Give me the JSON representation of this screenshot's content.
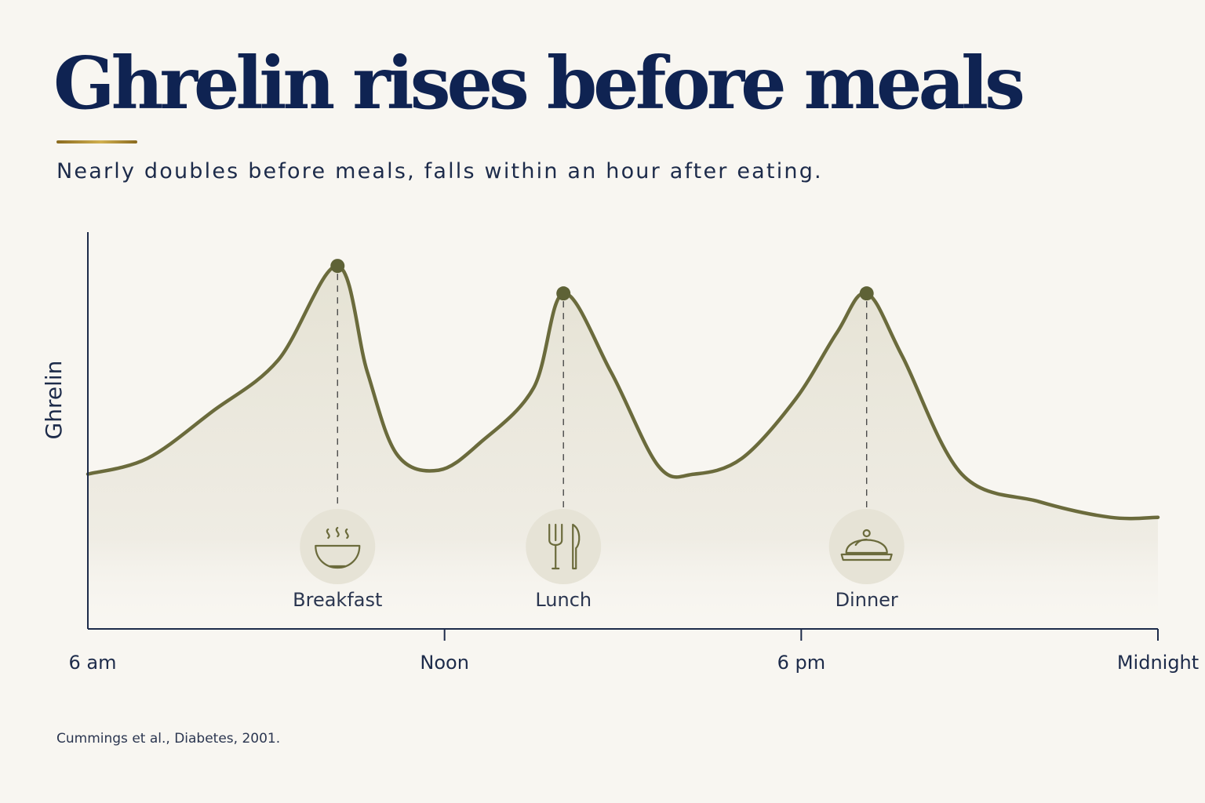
{
  "title": "Ghrelin rises before meals",
  "subtitle": "Nearly doubles before meals, falls within an hour after eating.",
  "source": "Cummings et al., Diabetes, 2001.",
  "colors": {
    "title": "#0f2352",
    "accent_rule": "#b8952f",
    "line": "#6b6b3c",
    "fill": "#e9e7dc",
    "icon_circle": "#e6e3d6",
    "axis": "#1d2b4a",
    "background": "#f8f6f1"
  },
  "chart_data": {
    "type": "line",
    "title": "",
    "xlabel": "",
    "ylabel": "Ghrelin",
    "y_ticks_shown": false,
    "grid": false,
    "legend": "none",
    "x_tick_labels": [
      {
        "hour": 6,
        "label": "6 am"
      },
      {
        "hour": 12,
        "label": "Noon"
      },
      {
        "hour": 18,
        "label": "6 pm"
      },
      {
        "hour": 24,
        "label": "Midnight"
      }
    ],
    "xlim": [
      6,
      24
    ],
    "ylim": [
      0,
      1
    ],
    "series": [
      {
        "x": [
          6.0,
          7.0,
          8.1,
          9.2,
          10.2,
          10.7,
          11.2,
          11.9,
          12.6,
          13.5,
          14.0,
          14.8,
          15.6,
          16.2,
          17.0,
          17.9,
          18.6,
          19.1,
          19.7,
          20.7,
          22.0,
          23.2,
          24.0
        ],
        "y": [
          0.4,
          0.44,
          0.56,
          0.69,
          0.93,
          0.66,
          0.45,
          0.41,
          0.48,
          0.62,
          0.86,
          0.66,
          0.42,
          0.4,
          0.44,
          0.59,
          0.76,
          0.86,
          0.7,
          0.4,
          0.33,
          0.29,
          0.29
        ]
      }
    ],
    "meals": [
      {
        "label": "Breakfast",
        "hour": 10.2,
        "icon": "bowl-icon",
        "peak": 0.93
      },
      {
        "label": "Lunch",
        "hour": 14.0,
        "icon": "fork-knife-icon",
        "peak": 0.86
      },
      {
        "label": "Dinner",
        "hour": 19.1,
        "icon": "cloche-icon",
        "peak": 0.86
      }
    ]
  }
}
